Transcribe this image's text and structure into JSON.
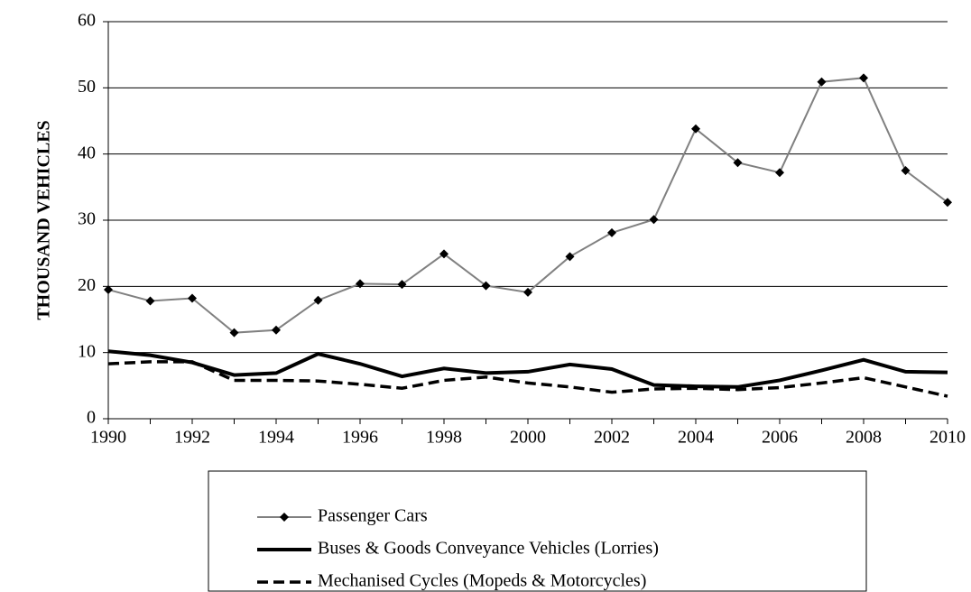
{
  "chart_data": {
    "type": "line",
    "ylabel": "THOUSAND VEHICLES",
    "x": [
      1990,
      1991,
      1992,
      1993,
      1994,
      1995,
      1996,
      1997,
      1998,
      1999,
      2000,
      2001,
      2002,
      2003,
      2004,
      2005,
      2006,
      2007,
      2008,
      2009,
      2010
    ],
    "xlim": [
      1990,
      2010
    ],
    "xticks": [
      1990,
      1992,
      1994,
      1996,
      1998,
      2000,
      2002,
      2004,
      2006,
      2008,
      2010
    ],
    "ylim": [
      0,
      60
    ],
    "yticks": [
      0,
      10,
      20,
      30,
      40,
      50,
      60
    ],
    "grid": true,
    "legend": "bottom",
    "series": [
      {
        "name": "Passenger Cars",
        "color": "#808080",
        "marker": "diamond",
        "dash": "solid",
        "values": [
          19.5,
          17.8,
          18.2,
          13.0,
          13.4,
          17.9,
          20.4,
          20.3,
          24.9,
          20.1,
          19.1,
          24.5,
          28.1,
          30.1,
          43.8,
          38.7,
          37.2,
          50.9,
          51.5,
          37.5,
          32.7
        ]
      },
      {
        "name": "Buses & Goods Conveyance Vehicles (Lorries)",
        "color": "#000000",
        "marker": "none",
        "dash": "solid",
        "values": [
          10.2,
          9.6,
          8.5,
          6.6,
          6.9,
          9.8,
          8.3,
          6.4,
          7.6,
          6.9,
          7.1,
          8.2,
          7.5,
          5.1,
          4.9,
          4.8,
          5.8,
          7.3,
          8.9,
          7.1,
          7.0
        ]
      },
      {
        "name": "Mechanised Cycles (Mopeds & Motorcycles)",
        "color": "#000000",
        "marker": "none",
        "dash": "dashed",
        "values": [
          8.3,
          8.6,
          8.6,
          5.8,
          5.8,
          5.7,
          5.2,
          4.6,
          5.8,
          6.3,
          5.4,
          4.8,
          4.0,
          4.5,
          4.6,
          4.4,
          4.7,
          5.4,
          6.2,
          4.8,
          3.4
        ]
      }
    ]
  }
}
